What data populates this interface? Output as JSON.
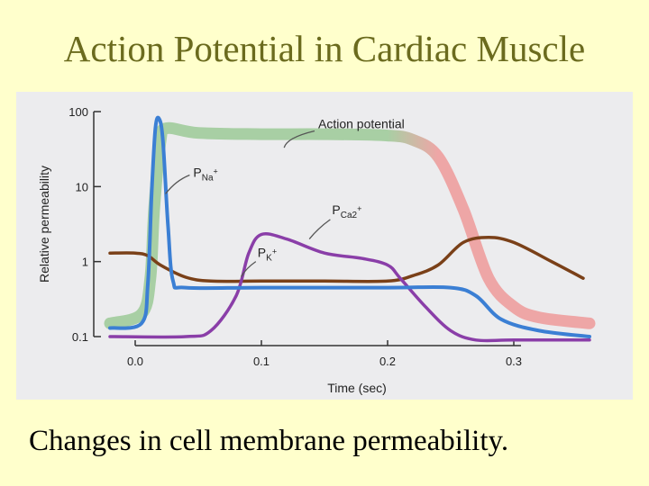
{
  "slide": {
    "title": "Action Potential in Cardiac Muscle",
    "caption": "Changes in cell membrane permeability."
  },
  "chart_data": {
    "type": "line",
    "title": "",
    "xlabel": "Time (sec)",
    "ylabel": "Relative permeability",
    "xlim": [
      -0.02,
      0.36
    ],
    "ylim": [
      0.1,
      100
    ],
    "yscale": "log",
    "x_ticks": [
      0.0,
      0.1,
      0.2,
      0.3
    ],
    "x_tick_labels": [
      "0.0",
      "0.1",
      "0.2",
      "0.3"
    ],
    "y_ticks": [
      0.1,
      1,
      10,
      100
    ],
    "y_tick_labels": [
      "0.1",
      "1",
      "10",
      "100"
    ],
    "colors": {
      "action_potential_plateau": "#a8cfa4",
      "action_potential_repol": "#eea6a6",
      "pna": "#3b7fd4",
      "pca": "#8a3ea8",
      "pk": "#7a4018",
      "axis": "#333333",
      "label_line": "#555555"
    },
    "series": [
      {
        "name": "Action potential",
        "key": "ap",
        "x": [
          -0.02,
          0.005,
          0.012,
          0.015,
          0.02,
          0.025,
          0.05,
          0.1,
          0.15,
          0.2,
          0.22,
          0.24,
          0.26,
          0.28,
          0.3,
          0.32,
          0.36
        ],
        "y": [
          0.15,
          0.2,
          0.6,
          5,
          40,
          60,
          52,
          50,
          50,
          48,
          42,
          25,
          5,
          0.6,
          0.25,
          0.18,
          0.15
        ]
      },
      {
        "name": "PNa+",
        "label_base": "P",
        "label_sub": "Na+",
        "key": "pna",
        "x": [
          -0.02,
          0.005,
          0.01,
          0.013,
          0.016,
          0.019,
          0.022,
          0.026,
          0.03,
          0.04,
          0.1,
          0.2,
          0.25,
          0.27,
          0.29,
          0.32,
          0.36
        ],
        "y": [
          0.13,
          0.15,
          0.5,
          8,
          60,
          80,
          40,
          3,
          0.55,
          0.45,
          0.45,
          0.45,
          0.45,
          0.35,
          0.17,
          0.12,
          0.1
        ]
      },
      {
        "name": "PCa2+",
        "label_base": "P",
        "label_sub": "Ca2+",
        "key": "pca",
        "x": [
          -0.02,
          0.04,
          0.06,
          0.08,
          0.09,
          0.1,
          0.12,
          0.15,
          0.18,
          0.2,
          0.21,
          0.23,
          0.25,
          0.27,
          0.3,
          0.36
        ],
        "y": [
          0.1,
          0.1,
          0.12,
          0.35,
          1.3,
          2.3,
          2.0,
          1.3,
          1.1,
          0.9,
          0.6,
          0.25,
          0.12,
          0.09,
          0.09,
          0.09
        ]
      },
      {
        "name": "PK+",
        "label_base": "P",
        "label_sub": "K+",
        "key": "pk",
        "x": [
          -0.02,
          0.0,
          0.01,
          0.02,
          0.04,
          0.06,
          0.1,
          0.15,
          0.2,
          0.22,
          0.24,
          0.26,
          0.28,
          0.3,
          0.33,
          0.355
        ],
        "y": [
          1.3,
          1.3,
          1.2,
          0.9,
          0.62,
          0.55,
          0.55,
          0.55,
          0.55,
          0.65,
          0.9,
          1.8,
          2.1,
          1.8,
          1.0,
          0.6
        ]
      }
    ],
    "annotations": [
      {
        "text": "Action potential",
        "x": 0.145,
        "y": 60
      },
      {
        "label_base": "P",
        "label_sub": "Na+",
        "x": 0.046,
        "y": 13.5
      },
      {
        "label_base": "P",
        "label_sub": "Ca2+",
        "x": 0.156,
        "y": 4.3
      },
      {
        "label_base": "P",
        "label_sub": "K+",
        "x": 0.097,
        "y": 1.15
      }
    ]
  }
}
